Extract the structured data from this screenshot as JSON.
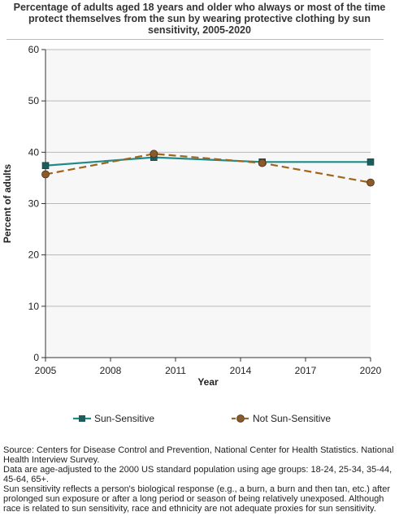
{
  "title": "Percentage of adults aged 18 years and older who always or most of the time protect themselves from the sun by wearing protective clothing by sun sensitivity, 2005-2020",
  "notes": [
    "Source: Centers for Disease Control and Prevention, National Center for Health Statistics. National Health Interview Survey.",
    "Data are age-adjusted to the 2000 US standard population using age groups: 18-24, 25-34, 35-44, 45-64, 65+.",
    "Sun sensitivity reflects a person's biological response (e.g., a burn, a burn and then tan, etc.) after prolonged sun exposure or after a long period or season of being relatively unexposed. Although race is related to sun sensitivity, race and ethnicity are not adequate proxies for sun sensitivity."
  ],
  "chart_data": {
    "type": "line",
    "title": "Percentage of adults aged 18 years and older who always or most of the time protect themselves from the sun by wearing protective clothing by sun sensitivity, 2005-2020",
    "xlabel": "Year",
    "ylabel": "Percent of adults",
    "xlim": [
      2005,
      2020
    ],
    "ylim": [
      0,
      60
    ],
    "x_ticks": [
      2005,
      2008,
      2011,
      2014,
      2017,
      2020
    ],
    "y_ticks": [
      0,
      10,
      20,
      30,
      40,
      50,
      60
    ],
    "grid": "horizontal",
    "legend": "bottom",
    "x": [
      2005,
      2010,
      2015,
      2020
    ],
    "series": [
      {
        "name": "Sun-Sensitive",
        "values": [
          37.4,
          39.0,
          38.1,
          38.1
        ],
        "color": "#1f8a8a",
        "marker_color": "#1e5c5c",
        "marker": "square",
        "line": "solid"
      },
      {
        "name": "Not Sun-Sensitive",
        "values": [
          35.7,
          39.7,
          37.9,
          34.1
        ],
        "color": "#a0651c",
        "marker_color": "#8b5a2b",
        "marker": "circle",
        "line": "dashed"
      }
    ]
  }
}
